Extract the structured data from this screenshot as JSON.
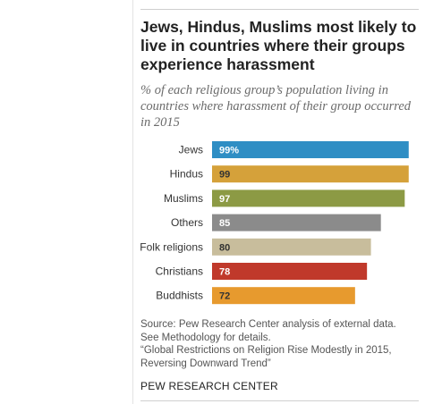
{
  "title": "Jews, Hindus, Muslims most likely to live in countries where their groups experience harassment",
  "subtitle": "% of each religious group’s population living in countries where harassment of their group occurred in 2015",
  "chart_data": {
    "type": "bar",
    "orientation": "horizontal",
    "categories": [
      "Jews",
      "Hindus",
      "Muslims",
      "Others",
      "Folk religions",
      "Christians",
      "Buddhists"
    ],
    "values": [
      99,
      99,
      97,
      85,
      80,
      78,
      72
    ],
    "value_labels": [
      "99%",
      "99",
      "97",
      "85",
      "80",
      "78",
      "72"
    ],
    "colors": [
      "#2f8ec4",
      "#d5a13a",
      "#8c9a44",
      "#8b8b8b",
      "#c8bd9c",
      "#c0392b",
      "#e79a2e"
    ],
    "value_label_colors": [
      "#ffffff",
      "#333333",
      "#ffffff",
      "#ffffff",
      "#333333",
      "#ffffff",
      "#333333"
    ],
    "xlim": [
      0,
      100
    ],
    "grid": false,
    "legend": "none"
  },
  "source_lines": [
    "Source: Pew Research Center analysis of external data.",
    "See Methodology for details.",
    "“Global Restrictions on Religion Rise Modestly in 2015,",
    "Reversing Downward Trend”"
  ],
  "brand": "PEW RESEARCH CENTER"
}
